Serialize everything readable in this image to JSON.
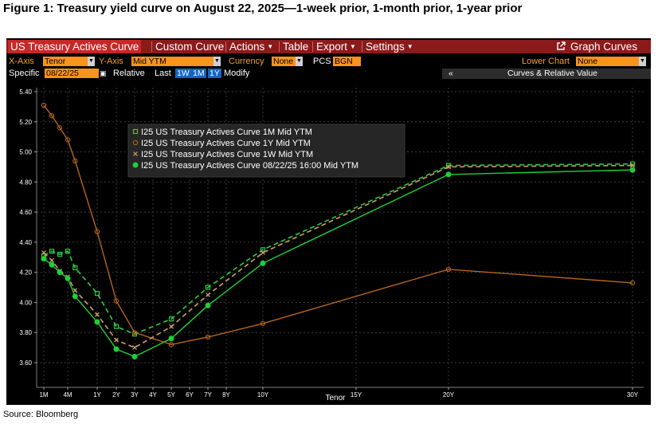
{
  "figure_title": "Figure 1: Treasury yield curve on August 22, 2025—1-week prior, 1-month prior, 1-year prior",
  "source": "Source: Bloomberg",
  "menubar": {
    "items": [
      "US Treasury Actives Curve",
      "Custom Curve",
      "Actions",
      "Table",
      "Export",
      "Settings"
    ],
    "graph_curves": "Graph Curves",
    "graph_icon": "external-link-icon"
  },
  "controls": {
    "xaxis_label": "X-Axis",
    "xaxis_value": "Tenor",
    "yaxis_label": "Y-Axis",
    "yaxis_value": "Mid YTM",
    "currency_label": "Currency",
    "currency_value": "None",
    "pcs_label": "PCS",
    "pcs_value": "BGN",
    "lower_chart_label": "Lower Chart",
    "lower_chart_value": "None",
    "specific_label": "Specific",
    "specific_value": "08/22/25",
    "relative_label": "Relative",
    "last_label": "Last",
    "btn_1w": "1W",
    "btn_1m": "1M",
    "btn_1y": "1Y",
    "modify_label": "Modify",
    "collapse_glyph": "«",
    "curves_relative": "Curves & Relative Value",
    "calendar_icon": "calendar-icon"
  },
  "chart_data": {
    "type": "line",
    "title": "",
    "xlabel": "Tenor",
    "ylabel": "",
    "ylim": [
      3.55,
      5.42
    ],
    "yticks": [
      3.6,
      3.8,
      4.0,
      4.2,
      4.4,
      4.6,
      4.8,
      5.0,
      5.2,
      5.4
    ],
    "ytick_labels": [
      "3.60",
      "3.80",
      "4.00",
      "4.20",
      "4.40",
      "4.60",
      "4.80",
      "5.00",
      "5.20",
      "5.40"
    ],
    "x_tenor_labels": [
      "1M",
      "4M",
      "1Y",
      "2Y",
      "3Y",
      "4Y",
      "5Y",
      "6Y",
      "7Y",
      "8Y",
      "10Y",
      "15Y",
      "20Y",
      "30Y"
    ],
    "x_tenor_years": [
      0.083,
      0.333,
      1,
      2,
      3,
      4,
      5,
      6,
      7,
      8,
      10,
      15,
      20,
      30
    ],
    "legend_placement": "top-left",
    "series": [
      {
        "name": "I25 US Treasury Actives Curve 1M Mid YTM",
        "color": "#2ecc40",
        "style": "dashed",
        "marker": "square",
        "x": [
          0.083,
          0.167,
          0.25,
          0.333,
          0.5,
          1,
          2,
          3,
          5,
          7,
          10,
          20,
          30
        ],
        "y": [
          4.31,
          4.34,
          4.32,
          4.34,
          4.23,
          4.06,
          3.84,
          3.79,
          3.89,
          4.1,
          4.35,
          4.91,
          4.92
        ]
      },
      {
        "name": "I25 US Treasury Actives Curve 1Y Mid YTM",
        "color": "#b5651d",
        "style": "solid",
        "marker": "circle",
        "x": [
          0.083,
          0.167,
          0.25,
          0.333,
          0.5,
          1,
          2,
          3,
          5,
          7,
          10,
          20,
          30
        ],
        "y": [
          5.31,
          5.24,
          5.16,
          5.08,
          4.94,
          4.47,
          4.01,
          3.8,
          3.72,
          3.77,
          3.86,
          4.22,
          4.13
        ]
      },
      {
        "name": "I25 US Treasury Actives Curve 1W Mid YTM",
        "color": "#c8a070",
        "style": "dashed",
        "marker": "x",
        "x": [
          0.083,
          0.167,
          0.25,
          0.333,
          0.5,
          1,
          2,
          3,
          5,
          7,
          10,
          20,
          30
        ],
        "y": [
          4.33,
          4.28,
          4.21,
          4.17,
          4.08,
          3.92,
          3.75,
          3.7,
          3.84,
          4.05,
          4.33,
          4.9,
          4.91
        ]
      },
      {
        "name": "I25 US Treasury Actives Curve 08/22/25 16:00 Mid YTM",
        "color": "#1fcf3a",
        "style": "solid",
        "marker": "filled-circle",
        "x": [
          0.083,
          0.167,
          0.25,
          0.333,
          0.5,
          1,
          2,
          3,
          5,
          7,
          10,
          20,
          30
        ],
        "y": [
          4.29,
          4.25,
          4.2,
          4.16,
          4.04,
          3.87,
          3.69,
          3.64,
          3.76,
          3.98,
          4.26,
          4.85,
          4.88
        ]
      }
    ]
  }
}
